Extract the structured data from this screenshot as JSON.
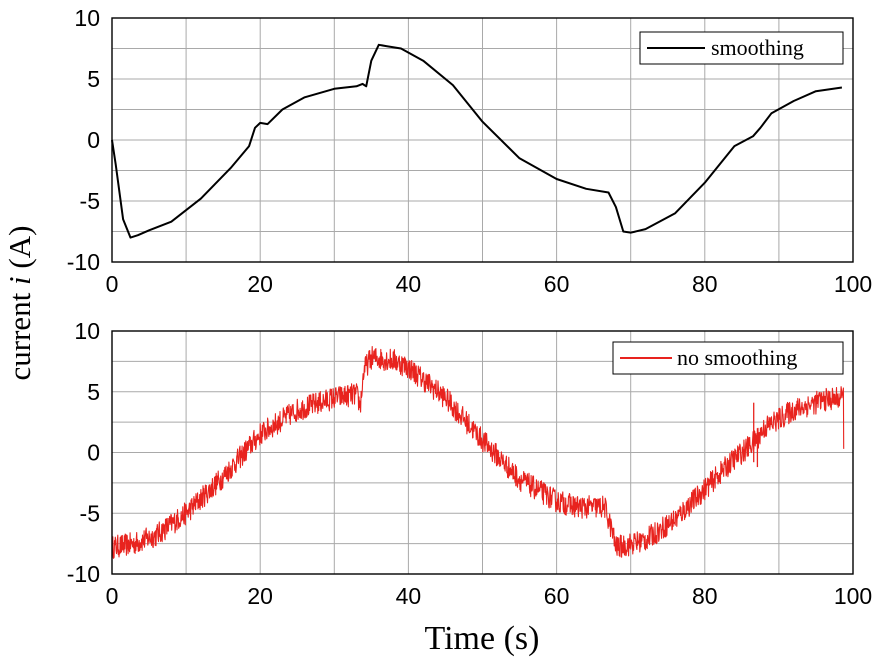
{
  "chart_data": [
    {
      "type": "line",
      "panel": "top",
      "xlim": [
        0,
        100
      ],
      "ylim": [
        -10,
        10
      ],
      "xticks": [
        0,
        20,
        40,
        60,
        80,
        100
      ],
      "yticks": [
        10,
        5,
        0,
        -5,
        -10
      ],
      "grid": true,
      "legend_position": "top-right",
      "series": [
        {
          "name": "smoothing",
          "color": "#000000",
          "noisy": false,
          "x": [
            0,
            0.5,
            1.5,
            2.5,
            3.5,
            5,
            8,
            12,
            16,
            18.5,
            19.3,
            20,
            21,
            23,
            26,
            30,
            33,
            33.8,
            34.3,
            35,
            36,
            37,
            39,
            42,
            46,
            50,
            55,
            60,
            64,
            67,
            68,
            69,
            70,
            72,
            76,
            80,
            84,
            86.5,
            87.5,
            89,
            92,
            95,
            98.5
          ],
          "values": [
            0,
            -2,
            -6.5,
            -8,
            -7.8,
            -7.4,
            -6.7,
            -4.8,
            -2.3,
            -0.5,
            1,
            1.4,
            1.3,
            2.5,
            3.5,
            4.2,
            4.4,
            4.6,
            4.4,
            6.5,
            7.8,
            7.7,
            7.5,
            6.5,
            4.5,
            1.5,
            -1.5,
            -3.2,
            -4,
            -4.3,
            -5.5,
            -7.5,
            -7.6,
            -7.3,
            -6,
            -3.5,
            -0.5,
            0.3,
            1,
            2.2,
            3.2,
            4,
            4.3
          ]
        }
      ]
    },
    {
      "type": "line",
      "panel": "bottom",
      "xlim": [
        0,
        100
      ],
      "ylim": [
        -10,
        10
      ],
      "xticks": [
        0,
        20,
        40,
        60,
        80,
        100
      ],
      "yticks": [
        10,
        5,
        0,
        -5,
        -10
      ],
      "grid": true,
      "legend_position": "top-right",
      "series": [
        {
          "name": "no smoothing",
          "color": "#e8231e",
          "noisy": true,
          "x": [
            0,
            3,
            6,
            10,
            15,
            20,
            25,
            30,
            33,
            33.5,
            34,
            35,
            38,
            40,
            45,
            50,
            55,
            60,
            63,
            66.5,
            67.5,
            68,
            69,
            72,
            76,
            80,
            84,
            86,
            86.8,
            87.5,
            88,
            92,
            96,
            98.5
          ],
          "values": [
            -7.8,
            -7.5,
            -6.8,
            -5,
            -2,
            1.5,
            3.5,
            4.5,
            4.8,
            3.8,
            6.8,
            7.8,
            7.6,
            7,
            4.5,
            1,
            -2.2,
            -4,
            -4.5,
            -4.5,
            -6.5,
            -7.8,
            -7.7,
            -7.2,
            -5.5,
            -3,
            -0.5,
            0.5,
            1,
            1.5,
            2,
            3.5,
            4.3,
            4.5
          ]
        }
      ]
    }
  ],
  "xlabel": "Time (s)",
  "ylabel": {
    "prefix": "current ",
    "symbol": "i",
    "suffix": " (A)"
  }
}
